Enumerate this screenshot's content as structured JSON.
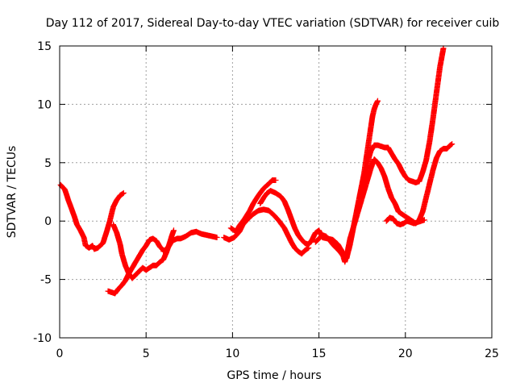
{
  "chart_data": {
    "type": "scatter",
    "title": "Day 112 of 2017, Sidereal Day-to-day VTEC variation (SDTVAR) for receiver cuib",
    "xlabel": "GPS time / hours",
    "ylabel": "SDTVAR / TECUs",
    "xlim": [
      0,
      25
    ],
    "ylim": [
      -10,
      15
    ],
    "xticks": [
      0,
      5,
      10,
      15,
      20,
      25
    ],
    "yticks": [
      -10,
      -5,
      0,
      5,
      10,
      15
    ],
    "xtick_labels": [
      "0",
      "5",
      "10",
      "15",
      "20",
      "25"
    ],
    "ytick_labels": [
      "-10",
      "-5",
      "0",
      "5",
      "10",
      "15"
    ],
    "grid": true,
    "marker": "+",
    "color": "#ff0000",
    "series": [
      {
        "name": "track-1",
        "points": [
          [
            0.05,
            3.1
          ],
          [
            0.3,
            2.7
          ],
          [
            0.5,
            1.8
          ],
          [
            0.7,
            1.0
          ],
          [
            0.85,
            0.4
          ],
          [
            1.0,
            -0.3
          ],
          [
            1.2,
            -0.8
          ],
          [
            1.4,
            -1.4
          ],
          [
            1.5,
            -2.1
          ],
          [
            1.7,
            -2.3
          ],
          [
            1.9,
            -2.1
          ],
          [
            2.0,
            -2.4
          ],
          [
            2.2,
            -2.3
          ],
          [
            2.5,
            -1.9
          ],
          [
            2.7,
            -1.0
          ],
          [
            2.9,
            0.0
          ],
          [
            3.1,
            1.2
          ],
          [
            3.3,
            1.8
          ],
          [
            3.5,
            2.2
          ],
          [
            3.7,
            2.4
          ]
        ]
      },
      {
        "name": "track-2",
        "points": [
          [
            2.8,
            -6.0
          ],
          [
            3.0,
            -6.1
          ],
          [
            3.2,
            -6.2
          ],
          [
            3.4,
            -5.8
          ],
          [
            3.6,
            -5.5
          ],
          [
            3.8,
            -5.1
          ],
          [
            4.0,
            -4.5
          ],
          [
            4.2,
            -4.0
          ],
          [
            4.4,
            -3.5
          ],
          [
            4.6,
            -3.0
          ],
          [
            4.8,
            -2.5
          ],
          [
            5.0,
            -2.1
          ],
          [
            5.2,
            -1.6
          ],
          [
            5.4,
            -1.5
          ],
          [
            5.6,
            -1.7
          ],
          [
            5.8,
            -2.2
          ],
          [
            6.0,
            -2.5
          ]
        ]
      },
      {
        "name": "track-3",
        "points": [
          [
            3.1,
            -0.3
          ],
          [
            3.3,
            -1.0
          ],
          [
            3.5,
            -2.0
          ],
          [
            3.6,
            -2.8
          ],
          [
            3.8,
            -3.8
          ],
          [
            4.0,
            -4.5
          ],
          [
            4.2,
            -4.9
          ],
          [
            4.4,
            -4.6
          ],
          [
            4.6,
            -4.3
          ],
          [
            4.8,
            -4.0
          ],
          [
            5.0,
            -4.2
          ],
          [
            5.2,
            -4.0
          ],
          [
            5.4,
            -3.8
          ],
          [
            5.6,
            -3.8
          ],
          [
            5.8,
            -3.5
          ],
          [
            6.0,
            -3.3
          ],
          [
            6.2,
            -2.6
          ],
          [
            6.4,
            -1.7
          ],
          [
            6.5,
            -1.2
          ],
          [
            6.6,
            -0.8
          ]
        ]
      },
      {
        "name": "track-4",
        "points": [
          [
            6.0,
            -2.6
          ],
          [
            6.3,
            -2.2
          ],
          [
            6.5,
            -1.7
          ],
          [
            6.8,
            -1.5
          ],
          [
            7.0,
            -1.5
          ],
          [
            7.3,
            -1.3
          ],
          [
            7.6,
            -1.0
          ],
          [
            7.9,
            -0.9
          ],
          [
            8.2,
            -1.1
          ],
          [
            8.5,
            -1.2
          ],
          [
            8.8,
            -1.3
          ],
          [
            9.1,
            -1.4
          ]
        ]
      },
      {
        "name": "track-5",
        "points": [
          [
            9.5,
            -1.4
          ],
          [
            9.8,
            -1.6
          ],
          [
            10.1,
            -1.4
          ],
          [
            10.4,
            -0.9
          ],
          [
            10.6,
            -0.3
          ],
          [
            10.9,
            0.2
          ],
          [
            11.2,
            0.6
          ],
          [
            11.5,
            0.9
          ],
          [
            11.8,
            1.0
          ],
          [
            12.1,
            0.9
          ],
          [
            12.4,
            0.5
          ],
          [
            12.7,
            0.0
          ],
          [
            13.0,
            -0.6
          ],
          [
            13.2,
            -1.2
          ],
          [
            13.4,
            -1.8
          ],
          [
            13.6,
            -2.3
          ],
          [
            13.8,
            -2.6
          ],
          [
            14.0,
            -2.8
          ],
          [
            14.2,
            -2.5
          ],
          [
            14.4,
            -2.3
          ]
        ]
      },
      {
        "name": "track-6",
        "points": [
          [
            9.9,
            -0.6
          ],
          [
            10.2,
            -0.9
          ],
          [
            10.4,
            -0.4
          ],
          [
            10.7,
            0.2
          ],
          [
            11.0,
            0.9
          ],
          [
            11.2,
            1.5
          ],
          [
            11.5,
            2.2
          ],
          [
            11.8,
            2.8
          ],
          [
            12.1,
            3.2
          ],
          [
            12.3,
            3.5
          ],
          [
            12.5,
            3.5
          ]
        ]
      },
      {
        "name": "track-7",
        "points": [
          [
            11.6,
            1.5
          ],
          [
            11.8,
            2.0
          ],
          [
            12.0,
            2.4
          ],
          [
            12.2,
            2.6
          ],
          [
            12.5,
            2.4
          ],
          [
            12.8,
            2.1
          ],
          [
            13.0,
            1.7
          ],
          [
            13.2,
            1.0
          ],
          [
            13.4,
            0.2
          ],
          [
            13.6,
            -0.6
          ],
          [
            13.8,
            -1.2
          ],
          [
            14.0,
            -1.6
          ],
          [
            14.2,
            -1.9
          ],
          [
            14.4,
            -2.0
          ],
          [
            14.6,
            -1.6
          ],
          [
            14.8,
            -1.0
          ],
          [
            15.0,
            -0.8
          ],
          [
            15.2,
            -1.4
          ],
          [
            15.5,
            -1.5
          ],
          [
            15.8,
            -1.6
          ],
          [
            16.1,
            -2.0
          ],
          [
            16.3,
            -2.5
          ],
          [
            16.5,
            -3.2
          ]
        ]
      },
      {
        "name": "track-8",
        "points": [
          [
            14.8,
            -1.8
          ],
          [
            15.0,
            -1.5
          ],
          [
            15.2,
            -1.2
          ],
          [
            15.4,
            -1.3
          ],
          [
            15.6,
            -1.6
          ],
          [
            15.8,
            -2.0
          ],
          [
            16.0,
            -2.3
          ],
          [
            16.2,
            -2.6
          ],
          [
            16.4,
            -3.0
          ],
          [
            16.5,
            -3.5
          ],
          [
            16.6,
            -3.0
          ],
          [
            16.8,
            -1.5
          ],
          [
            17.0,
            -0.5
          ],
          [
            17.2,
            0.5
          ],
          [
            17.4,
            1.5
          ],
          [
            17.6,
            2.5
          ],
          [
            17.8,
            3.5
          ],
          [
            18.0,
            4.5
          ],
          [
            18.2,
            5.3
          ],
          [
            18.4,
            5.0
          ],
          [
            18.6,
            4.5
          ],
          [
            18.8,
            3.8
          ],
          [
            19.0,
            2.8
          ],
          [
            19.2,
            2.0
          ],
          [
            19.4,
            1.5
          ],
          [
            19.6,
            0.8
          ],
          [
            19.8,
            0.6
          ],
          [
            20.0,
            0.4
          ],
          [
            20.2,
            0.2
          ],
          [
            20.4,
            0.0
          ],
          [
            20.6,
            -0.2
          ],
          [
            20.8,
            0.1
          ],
          [
            21.0,
            0.8
          ],
          [
            21.2,
            2.0
          ],
          [
            21.4,
            3.2
          ],
          [
            21.6,
            4.4
          ],
          [
            21.8,
            5.4
          ],
          [
            22.0,
            6.0
          ],
          [
            22.2,
            6.2
          ],
          [
            22.4,
            6.2
          ],
          [
            22.6,
            6.5
          ],
          [
            22.7,
            6.6
          ]
        ]
      },
      {
        "name": "track-9",
        "points": [
          [
            16.6,
            -3.2
          ],
          [
            16.8,
            -2.0
          ],
          [
            17.0,
            -0.5
          ],
          [
            17.2,
            1.0
          ],
          [
            17.4,
            2.5
          ],
          [
            17.6,
            4.0
          ],
          [
            17.8,
            6.0
          ],
          [
            18.0,
            8.0
          ],
          [
            18.1,
            9.0
          ],
          [
            18.2,
            9.6
          ],
          [
            18.3,
            10.0
          ],
          [
            18.4,
            10.3
          ]
        ]
      },
      {
        "name": "track-10",
        "points": [
          [
            17.5,
            3.0
          ],
          [
            17.7,
            4.2
          ],
          [
            17.9,
            5.5
          ],
          [
            18.0,
            6.0
          ],
          [
            18.2,
            6.5
          ],
          [
            18.4,
            6.5
          ],
          [
            18.6,
            6.4
          ],
          [
            18.8,
            6.3
          ],
          [
            19.0,
            6.3
          ],
          [
            19.2,
            5.8
          ],
          [
            19.4,
            5.3
          ],
          [
            19.6,
            4.9
          ],
          [
            19.8,
            4.3
          ],
          [
            20.0,
            3.8
          ],
          [
            20.2,
            3.5
          ],
          [
            20.4,
            3.4
          ],
          [
            20.6,
            3.3
          ],
          [
            20.8,
            3.4
          ],
          [
            21.0,
            4.2
          ],
          [
            21.2,
            5.2
          ],
          [
            21.4,
            6.8
          ],
          [
            21.6,
            8.8
          ],
          [
            21.8,
            11.0
          ],
          [
            22.0,
            13.2
          ],
          [
            22.2,
            14.8
          ]
        ]
      },
      {
        "name": "track-11",
        "points": [
          [
            18.9,
            0.0
          ],
          [
            19.1,
            0.3
          ],
          [
            19.3,
            0.2
          ],
          [
            19.5,
            -0.2
          ],
          [
            19.7,
            -0.3
          ],
          [
            19.9,
            -0.2
          ],
          [
            20.1,
            0.0
          ],
          [
            20.3,
            -0.1
          ],
          [
            20.5,
            -0.2
          ],
          [
            20.7,
            -0.1
          ],
          [
            20.9,
            0.0
          ],
          [
            21.1,
            0.1
          ]
        ]
      }
    ]
  }
}
